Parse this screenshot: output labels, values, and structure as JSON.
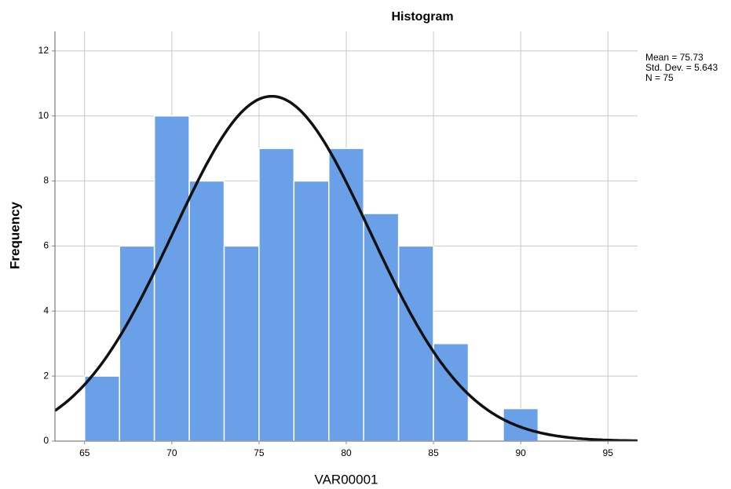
{
  "chart_data": {
    "type": "histogram",
    "title": "Histogram",
    "x_label": "VAR00001",
    "y_label": "Frequency",
    "bins": [
      65,
      67,
      69,
      71,
      73,
      75,
      77,
      79,
      81,
      83,
      85,
      87,
      89,
      91
    ],
    "values": [
      2,
      6,
      10,
      8,
      6,
      9,
      8,
      9,
      7,
      6,
      3,
      0,
      1
    ],
    "color": "#6aa0e8",
    "xlim": [
      63.3,
      96.7
    ],
    "xticks": [
      65,
      70,
      75,
      80,
      85,
      90,
      95
    ],
    "ylim": [
      0,
      12.6
    ],
    "yticks": [
      0,
      2,
      4,
      6,
      8,
      10,
      12
    ],
    "grid": true,
    "normal_curve": {
      "mean": 75.73,
      "std_dev": 5.643,
      "n": 75,
      "color": "#111111"
    },
    "annotations": [
      "Mean = 75.73",
      "Std. Dev. = 5.643",
      "N = 75"
    ]
  }
}
